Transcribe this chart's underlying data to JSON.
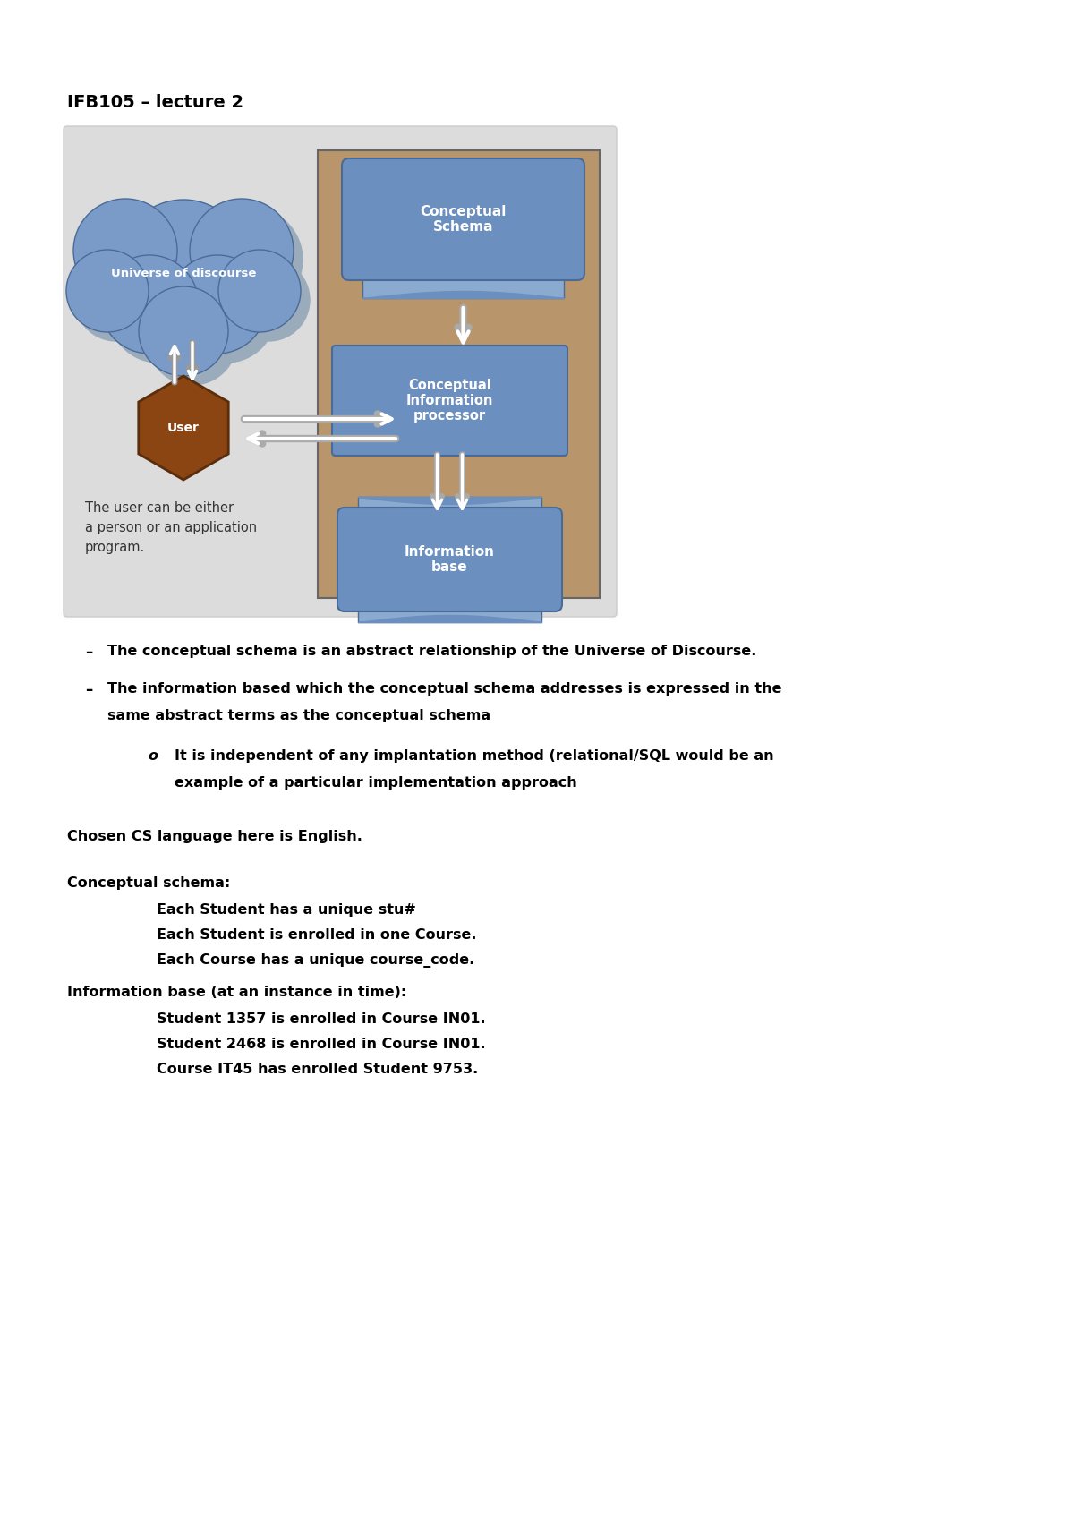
{
  "title": "IFB105 – lecture 2",
  "bg_color": "#ffffff",
  "slide_bg": "#dcdcdc",
  "tan_bg": "#b8956a",
  "blue_shape": "#6b8fbf",
  "blue_shape_dark": "#4a6a97",
  "brown_hex": "#8b4513",
  "cloud_color": "#7a9bc7",
  "cloud_edge": "#4a6a97",
  "cloud_shadow": "#9aabbb",
  "bullet1": "The conceptual schema is an abstract relationship of the Universe of Discourse.",
  "bullet2_line1": "The information based which the conceptual schema addresses is expressed in the",
  "bullet2_line2": "same abstract terms as the conceptual schema",
  "sub_line1": "It is independent of any implantation method (relational/SQL would be an",
  "sub_line2": "example of a particular implementation approach",
  "chosen_cs": "Chosen CS language here is English.",
  "conceptual_schema_label": "Conceptual schema:",
  "cs_items": [
    "Each Student has a unique stu#",
    "Each Student is enrolled in one Course.",
    "Each Course has a unique course_code."
  ],
  "info_base_label": "Information base (at an instance in time):",
  "ib_items": [
    "Student 1357 is enrolled in Course IN01.",
    "Student 2468 is enrolled in Course IN01.",
    "Course IT45 has enrolled Student 9753."
  ],
  "slide_user_note": "The user can be either\na person or an application\nprogram."
}
